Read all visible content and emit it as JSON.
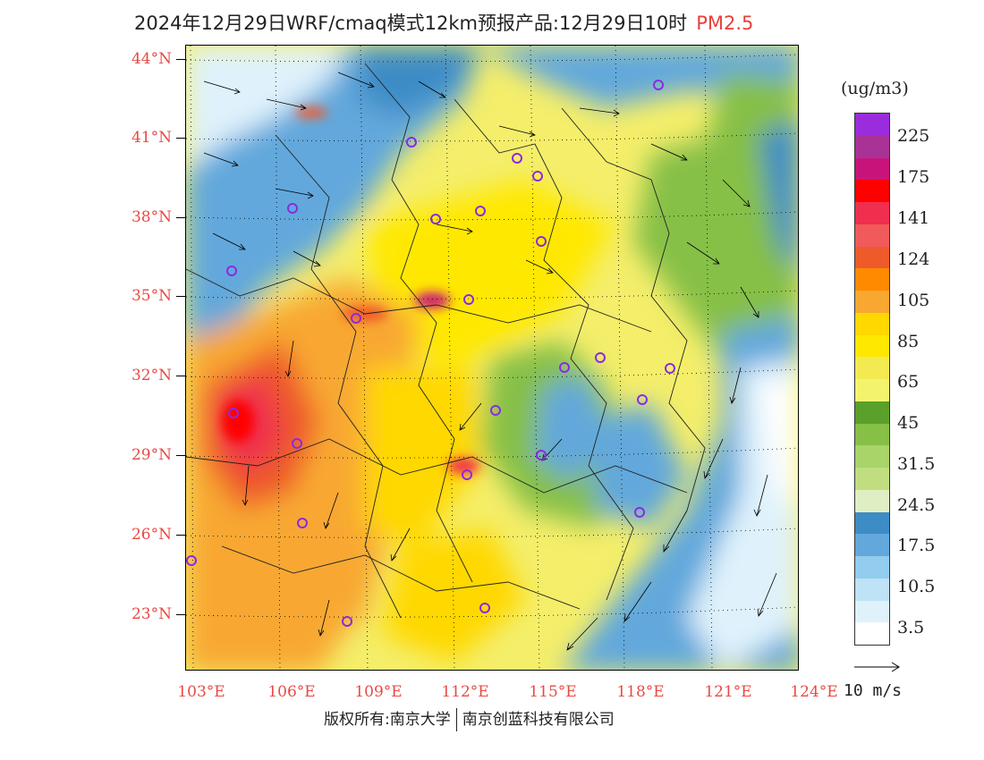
{
  "title": {
    "main": "2024年12月29日WRF/cmaq模式12km预报产品:12月29日10时",
    "product": "PM2.5"
  },
  "axes": {
    "lat_labels": [
      "44°N",
      "41°N",
      "38°N",
      "35°N",
      "32°N",
      "29°N",
      "26°N",
      "23°N"
    ],
    "lon_labels": [
      "103°E",
      "106°E",
      "109°E",
      "112°E",
      "115°E",
      "118°E",
      "121°E",
      "124°E"
    ]
  },
  "legend": {
    "unit": "(ug/m3)",
    "labels": [
      "225",
      "175",
      "141",
      "124",
      "105",
      "85",
      "65",
      "45",
      "31.5",
      "24.5",
      "17.5",
      "10.5",
      "3.5"
    ],
    "colors_top_to_bottom": [
      "#9b2cde",
      "#a83296",
      "#c8147a",
      "#ff0000",
      "#f02e4e",
      "#f05a5a",
      "#ee5a2a",
      "#ff8a00",
      "#f8a830",
      "#ffd800",
      "#ffe800",
      "#f2ea50",
      "#f4f46c",
      "#5aa02a",
      "#86c046",
      "#a8d46a",
      "#c0de80",
      "#e0eec4",
      "#3d8cc6",
      "#62a8dc",
      "#92ccee",
      "#bee2f6",
      "#dff2fc",
      "#ffffff"
    ]
  },
  "wind_key": {
    "label": "10 m/s"
  },
  "copyright": {
    "left": "版权所有:南京大学",
    "right": "南京创蓝科技有限公司"
  },
  "colors": {
    "label_red": "#e84a44",
    "city_marker": "#8a2be2"
  }
}
